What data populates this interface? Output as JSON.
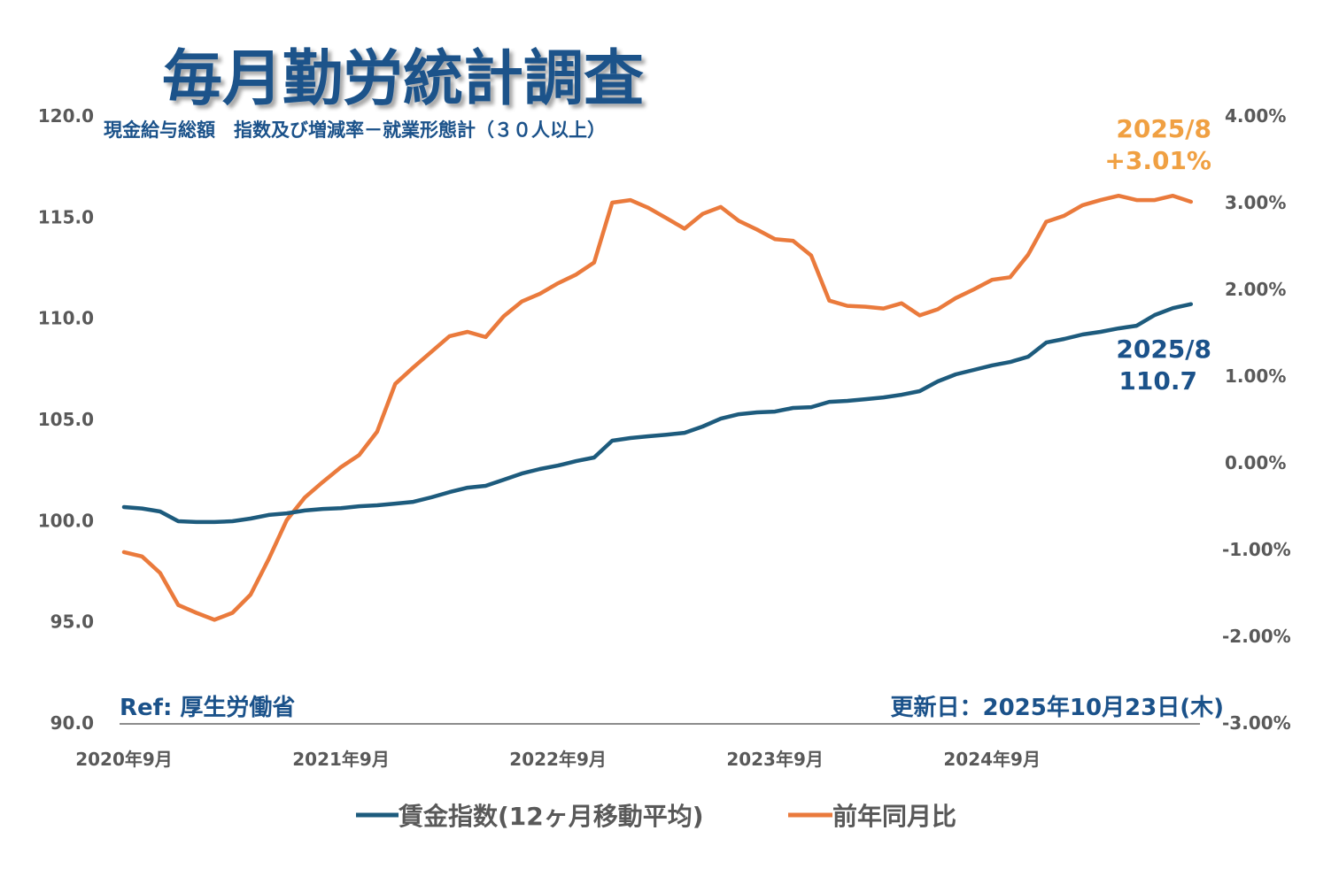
{
  "chart_data": {
    "type": "line",
    "title": "毎月勤労統計調査",
    "subtitle": "現金給与総額　指数及び増減率－就業形態計（３０人以上）",
    "x_range": [
      "2020/9",
      "2025/8"
    ],
    "x_tick_labels": [
      "2020年9月",
      "2021年9月",
      "2022年9月",
      "2023年9月",
      "2024年9月"
    ],
    "y_left": {
      "range": [
        90,
        120
      ],
      "tick_labels": [
        "120.0",
        "115.0",
        "110.0",
        "105.0",
        "100.0",
        "95.0",
        "90.0"
      ]
    },
    "y_right": {
      "range": [
        -3,
        4
      ],
      "unit": "%",
      "tick_labels": [
        "4.00%",
        "3.00%",
        "2.00%",
        "1.00%",
        "0.00%",
        "-1.00%",
        "-2.00%",
        "-3.00%"
      ]
    },
    "grid": false,
    "legend_position": "bottom",
    "series": [
      {
        "name": "賃金指数(12ヶ月移動平均)",
        "axis": "left",
        "color": "#1d5b7d",
        "values": [
          100.67,
          100.6,
          100.45,
          99.97,
          99.93,
          99.93,
          99.97,
          100.1,
          100.28,
          100.36,
          100.5,
          100.58,
          100.62,
          100.71,
          100.76,
          100.84,
          100.93,
          101.15,
          101.41,
          101.63,
          101.72,
          102.02,
          102.33,
          102.55,
          102.72,
          102.94,
          103.12,
          103.95,
          104.08,
          104.17,
          104.25,
          104.34,
          104.65,
          105.04,
          105.26,
          105.35,
          105.39,
          105.57,
          105.61,
          105.87,
          105.92,
          106.0,
          106.09,
          106.22,
          106.4,
          106.88,
          107.23,
          107.45,
          107.67,
          107.84,
          108.1,
          108.8,
          108.98,
          109.2,
          109.33,
          109.5,
          109.63,
          110.16,
          110.5,
          110.7
        ]
      },
      {
        "name": "前年同月比",
        "axis": "right",
        "color": "#ea7a3c",
        "values": [
          -1.03,
          -1.08,
          -1.27,
          -1.64,
          -1.73,
          -1.81,
          -1.73,
          -1.52,
          -1.11,
          -0.66,
          -0.4,
          -0.22,
          -0.05,
          0.09,
          0.36,
          0.91,
          1.1,
          1.28,
          1.46,
          1.51,
          1.45,
          1.69,
          1.86,
          1.95,
          2.07,
          2.17,
          2.31,
          3.0,
          3.03,
          2.94,
          2.82,
          2.7,
          2.87,
          2.95,
          2.79,
          2.69,
          2.58,
          2.56,
          2.39,
          1.87,
          1.81,
          1.8,
          1.78,
          1.84,
          1.7,
          1.77,
          1.9,
          2.0,
          2.11,
          2.14,
          2.4,
          2.78,
          2.85,
          2.97,
          3.03,
          3.08,
          3.03,
          3.03,
          3.08,
          3.01
        ]
      }
    ],
    "annotations": {
      "index_last": {
        "date": "2025/8",
        "value": "110.7",
        "color": "#1b528a"
      },
      "yoy_last": {
        "date": "2025/8",
        "value": "+3.01%",
        "color": "#f0a042"
      },
      "ref": "Ref: 厚生労働省",
      "updated": "更新日：2025年10月23日(木)"
    }
  }
}
